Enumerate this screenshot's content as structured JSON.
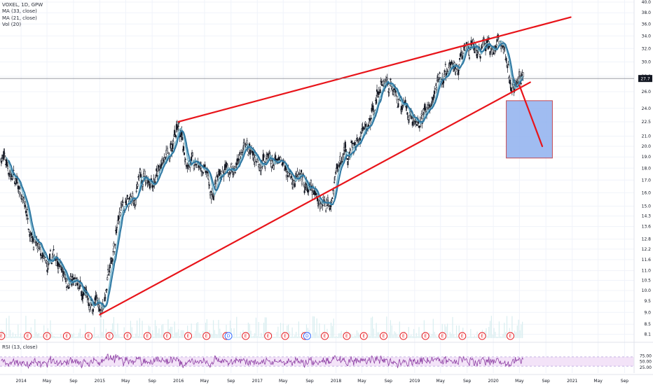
{
  "legend": {
    "symbol": "VOXEL, 1D, GPW",
    "ma33": "MA (33, close)",
    "ma21": "MA (21, close)",
    "vol": "Vol (20)"
  },
  "rsi_label": "RSI (13, close)",
  "colors": {
    "candle": "#131722",
    "ma": "#2e78a3",
    "ma_light": "#7fb8cc",
    "trend": "#e8141a",
    "box_fill": "#8fb0ee",
    "box_stroke": "#c44a55",
    "rsi_line": "#8d3ea3",
    "rsi_band": "#f3e3f8",
    "price_tag": "#131722",
    "earnings": "#e8141a",
    "dividend": "#2962ff"
  },
  "chart_data": {
    "type": "candlestick",
    "instrument": "VOXEL",
    "interval": "1D",
    "exchange": "GPW",
    "ylim": [
      7.9,
      40.4
    ],
    "y_scale": "log",
    "y_ticks": [
      "40.0",
      "38.0",
      "36.0",
      "34.0",
      "32.0",
      "30.0",
      "28.0",
      "26.0",
      "24.0",
      "22.5",
      "21.0",
      "20.0",
      "19.0",
      "18.0",
      "17.0",
      "16.0",
      "15.0",
      "14.3",
      "13.6",
      "12.8",
      "12.2",
      "11.6",
      "11.0",
      "10.5",
      "10.0",
      "9.5",
      "9.0",
      "8.5",
      "8.1"
    ],
    "x_ticks": [
      "2014",
      "May",
      "Sep",
      "2015",
      "May",
      "Sep",
      "2016",
      "May",
      "Sep",
      "2017",
      "May",
      "Sep",
      "2018",
      "May",
      "Sep",
      "2019",
      "May",
      "Sep",
      "2020",
      "May",
      "Sep",
      "2021",
      "May",
      "Sep"
    ],
    "x_range": [
      "2013-09-25",
      "2021-10-15"
    ],
    "last_price": "27.7",
    "price_anchors": [
      [
        "2013-10-01",
        19.2
      ],
      [
        "2013-12-01",
        17.0
      ],
      [
        "2014-02-01",
        14.4
      ],
      [
        "2014-03-15",
        12.2
      ],
      [
        "2014-05-01",
        11.0
      ],
      [
        "2014-06-15",
        11.9
      ],
      [
        "2014-07-15",
        10.8
      ],
      [
        "2014-09-15",
        10.2
      ],
      [
        "2014-11-15",
        9.4
      ],
      [
        "2015-01-15",
        9.3
      ],
      [
        "2015-03-01",
        11.8
      ],
      [
        "2015-04-10",
        14.8
      ],
      [
        "2015-06-01",
        15.2
      ],
      [
        "2015-07-20",
        17.5
      ],
      [
        "2015-09-15",
        17.2
      ],
      [
        "2015-11-01",
        18.5
      ],
      [
        "2015-12-30",
        21.8
      ],
      [
        "2016-02-01",
        19.2
      ],
      [
        "2016-03-15",
        18.0
      ],
      [
        "2016-05-01",
        17.8
      ],
      [
        "2016-06-01",
        15.8
      ],
      [
        "2016-07-15",
        17.6
      ],
      [
        "2016-09-15",
        18.0
      ],
      [
        "2016-11-01",
        20.0
      ],
      [
        "2017-01-15",
        18.8
      ],
      [
        "2017-03-15",
        18.4
      ],
      [
        "2017-06-01",
        17.6
      ],
      [
        "2017-08-01",
        16.5
      ],
      [
        "2017-10-01",
        15.6
      ],
      [
        "2017-12-01",
        15.4
      ],
      [
        "2018-01-01",
        17.8
      ],
      [
        "2018-02-15",
        19.4
      ],
      [
        "2018-04-01",
        20.0
      ],
      [
        "2018-06-01",
        22.0
      ],
      [
        "2018-07-15",
        26.0
      ],
      [
        "2018-08-20",
        27.8
      ],
      [
        "2018-10-15",
        25.2
      ],
      [
        "2018-12-01",
        24.0
      ],
      [
        "2019-01-15",
        22.0
      ],
      [
        "2019-03-01",
        23.8
      ],
      [
        "2019-04-15",
        26.5
      ],
      [
        "2019-06-01",
        28.5
      ],
      [
        "2019-07-15",
        29.5
      ],
      [
        "2019-09-01",
        32.0
      ],
      [
        "2019-10-15",
        31.0
      ],
      [
        "2019-12-01",
        32.5
      ],
      [
        "2020-01-15",
        32.0
      ],
      [
        "2020-02-15",
        33.5
      ],
      [
        "2020-03-10",
        28.0
      ],
      [
        "2020-03-25",
        25.5
      ],
      [
        "2020-04-20",
        27.2
      ],
      [
        "2020-05-20",
        27.7
      ]
    ],
    "trendlines": [
      {
        "name": "upper",
        "from": [
          "2016-01-01",
          22.5
        ],
        "to": [
          "2020-12-25",
          37.2
        ]
      },
      {
        "name": "lower",
        "from": [
          "2015-01-01",
          8.9
        ],
        "to": [
          "2020-06-20",
          27.2
        ]
      },
      {
        "name": "projection",
        "from": [
          "2020-05-01",
          26.8
        ],
        "to": [
          "2020-08-15",
          20.0
        ]
      }
    ],
    "target_zone": {
      "from": [
        "2020-03-01",
        24.9
      ],
      "to": [
        "2020-10-01",
        18.9
      ]
    },
    "event_markers": {
      "earnings_label": "E",
      "dividend_label": "D",
      "earnings": [
        "2013-10-01",
        "2014-02-01",
        "2014-05-01",
        "2014-08-01",
        "2014-11-10",
        "2015-02-15",
        "2015-05-10",
        "2015-08-10",
        "2015-11-10",
        "2016-02-15",
        "2016-05-10",
        "2016-08-10",
        "2016-11-08",
        "2017-02-20",
        "2017-05-10",
        "2017-08-10",
        "2017-11-10",
        "2018-02-20",
        "2018-05-10",
        "2018-08-10",
        "2018-11-10",
        "2019-02-20",
        "2019-05-10",
        "2019-08-10",
        "2019-11-10",
        "2020-03-20"
      ],
      "dividends": [
        "2016-08-20",
        "2017-08-20"
      ]
    },
    "rsi": {
      "name": "RSI (13, close)",
      "ticks": [
        "75.00",
        "50.00",
        "25.00"
      ],
      "band": [
        30,
        70
      ]
    }
  }
}
